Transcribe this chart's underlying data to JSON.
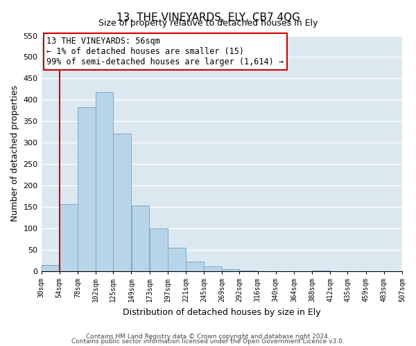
{
  "title": "13, THE VINEYARDS, ELY, CB7 4QG",
  "subtitle": "Size of property relative to detached houses in Ely",
  "xlabel": "Distribution of detached houses by size in Ely",
  "ylabel": "Number of detached properties",
  "bar_color": "#b8d4e8",
  "bar_edge_color": "#7aaac8",
  "annotation_box_edge": "#cc0000",
  "red_line_color": "#cc0000",
  "bins": [
    30,
    54,
    78,
    102,
    125,
    149,
    173,
    197,
    221,
    245,
    269,
    292,
    316,
    340,
    364,
    388,
    412,
    435,
    459,
    483,
    507
  ],
  "bin_labels": [
    "30sqm",
    "54sqm",
    "78sqm",
    "102sqm",
    "125sqm",
    "149sqm",
    "173sqm",
    "197sqm",
    "221sqm",
    "245sqm",
    "269sqm",
    "292sqm",
    "316sqm",
    "340sqm",
    "364sqm",
    "388sqm",
    "412sqm",
    "435sqm",
    "459sqm",
    "483sqm",
    "507sqm"
  ],
  "counts": [
    15,
    157,
    383,
    418,
    322,
    153,
    100,
    54,
    22,
    11,
    4,
    2,
    0,
    0,
    0,
    2,
    0,
    0,
    0,
    0
  ],
  "ylim": [
    0,
    550
  ],
  "yticks": [
    0,
    50,
    100,
    150,
    200,
    250,
    300,
    350,
    400,
    450,
    500,
    550
  ],
  "annotation_line1": "13 THE VINEYARDS: 56sqm",
  "annotation_line2": "← 1% of detached houses are smaller (15)",
  "annotation_line3": "99% of semi-detached houses are larger (1,614) →",
  "red_line_x": 54,
  "footnote1": "Contains HM Land Registry data © Crown copyright and database right 2024.",
  "footnote2": "Contains public sector information licensed under the Open Government Licence v3.0."
}
